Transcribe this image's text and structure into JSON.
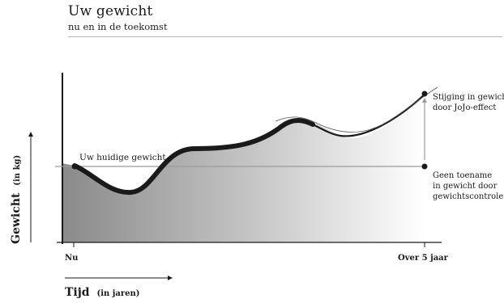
{
  "header": {
    "title": "Uw gewicht",
    "subtitle": "nu en in de toekomst"
  },
  "chart_data": {
    "type": "line",
    "xlabel": "Tijd",
    "xlabel_unit": "(in jaren)",
    "ylabel": "Gewicht",
    "ylabel_unit": "(in kg)",
    "x_tick_labels": [
      "Nu",
      "Over 5 jaar"
    ],
    "annotations": {
      "current": "Uw huidige gewicht",
      "yoyo": [
        "Stijging in gewicht",
        "door JoJo-effect"
      ],
      "controlled": [
        "Geen toename",
        "in gewicht door",
        "gewichtscontrole"
      ]
    },
    "colors": {
      "curve": "#1a1a1a",
      "fill_dark": "#8a8a8a",
      "fill_light": "#ffffff",
      "baseline": "#9a9a9a"
    }
  }
}
